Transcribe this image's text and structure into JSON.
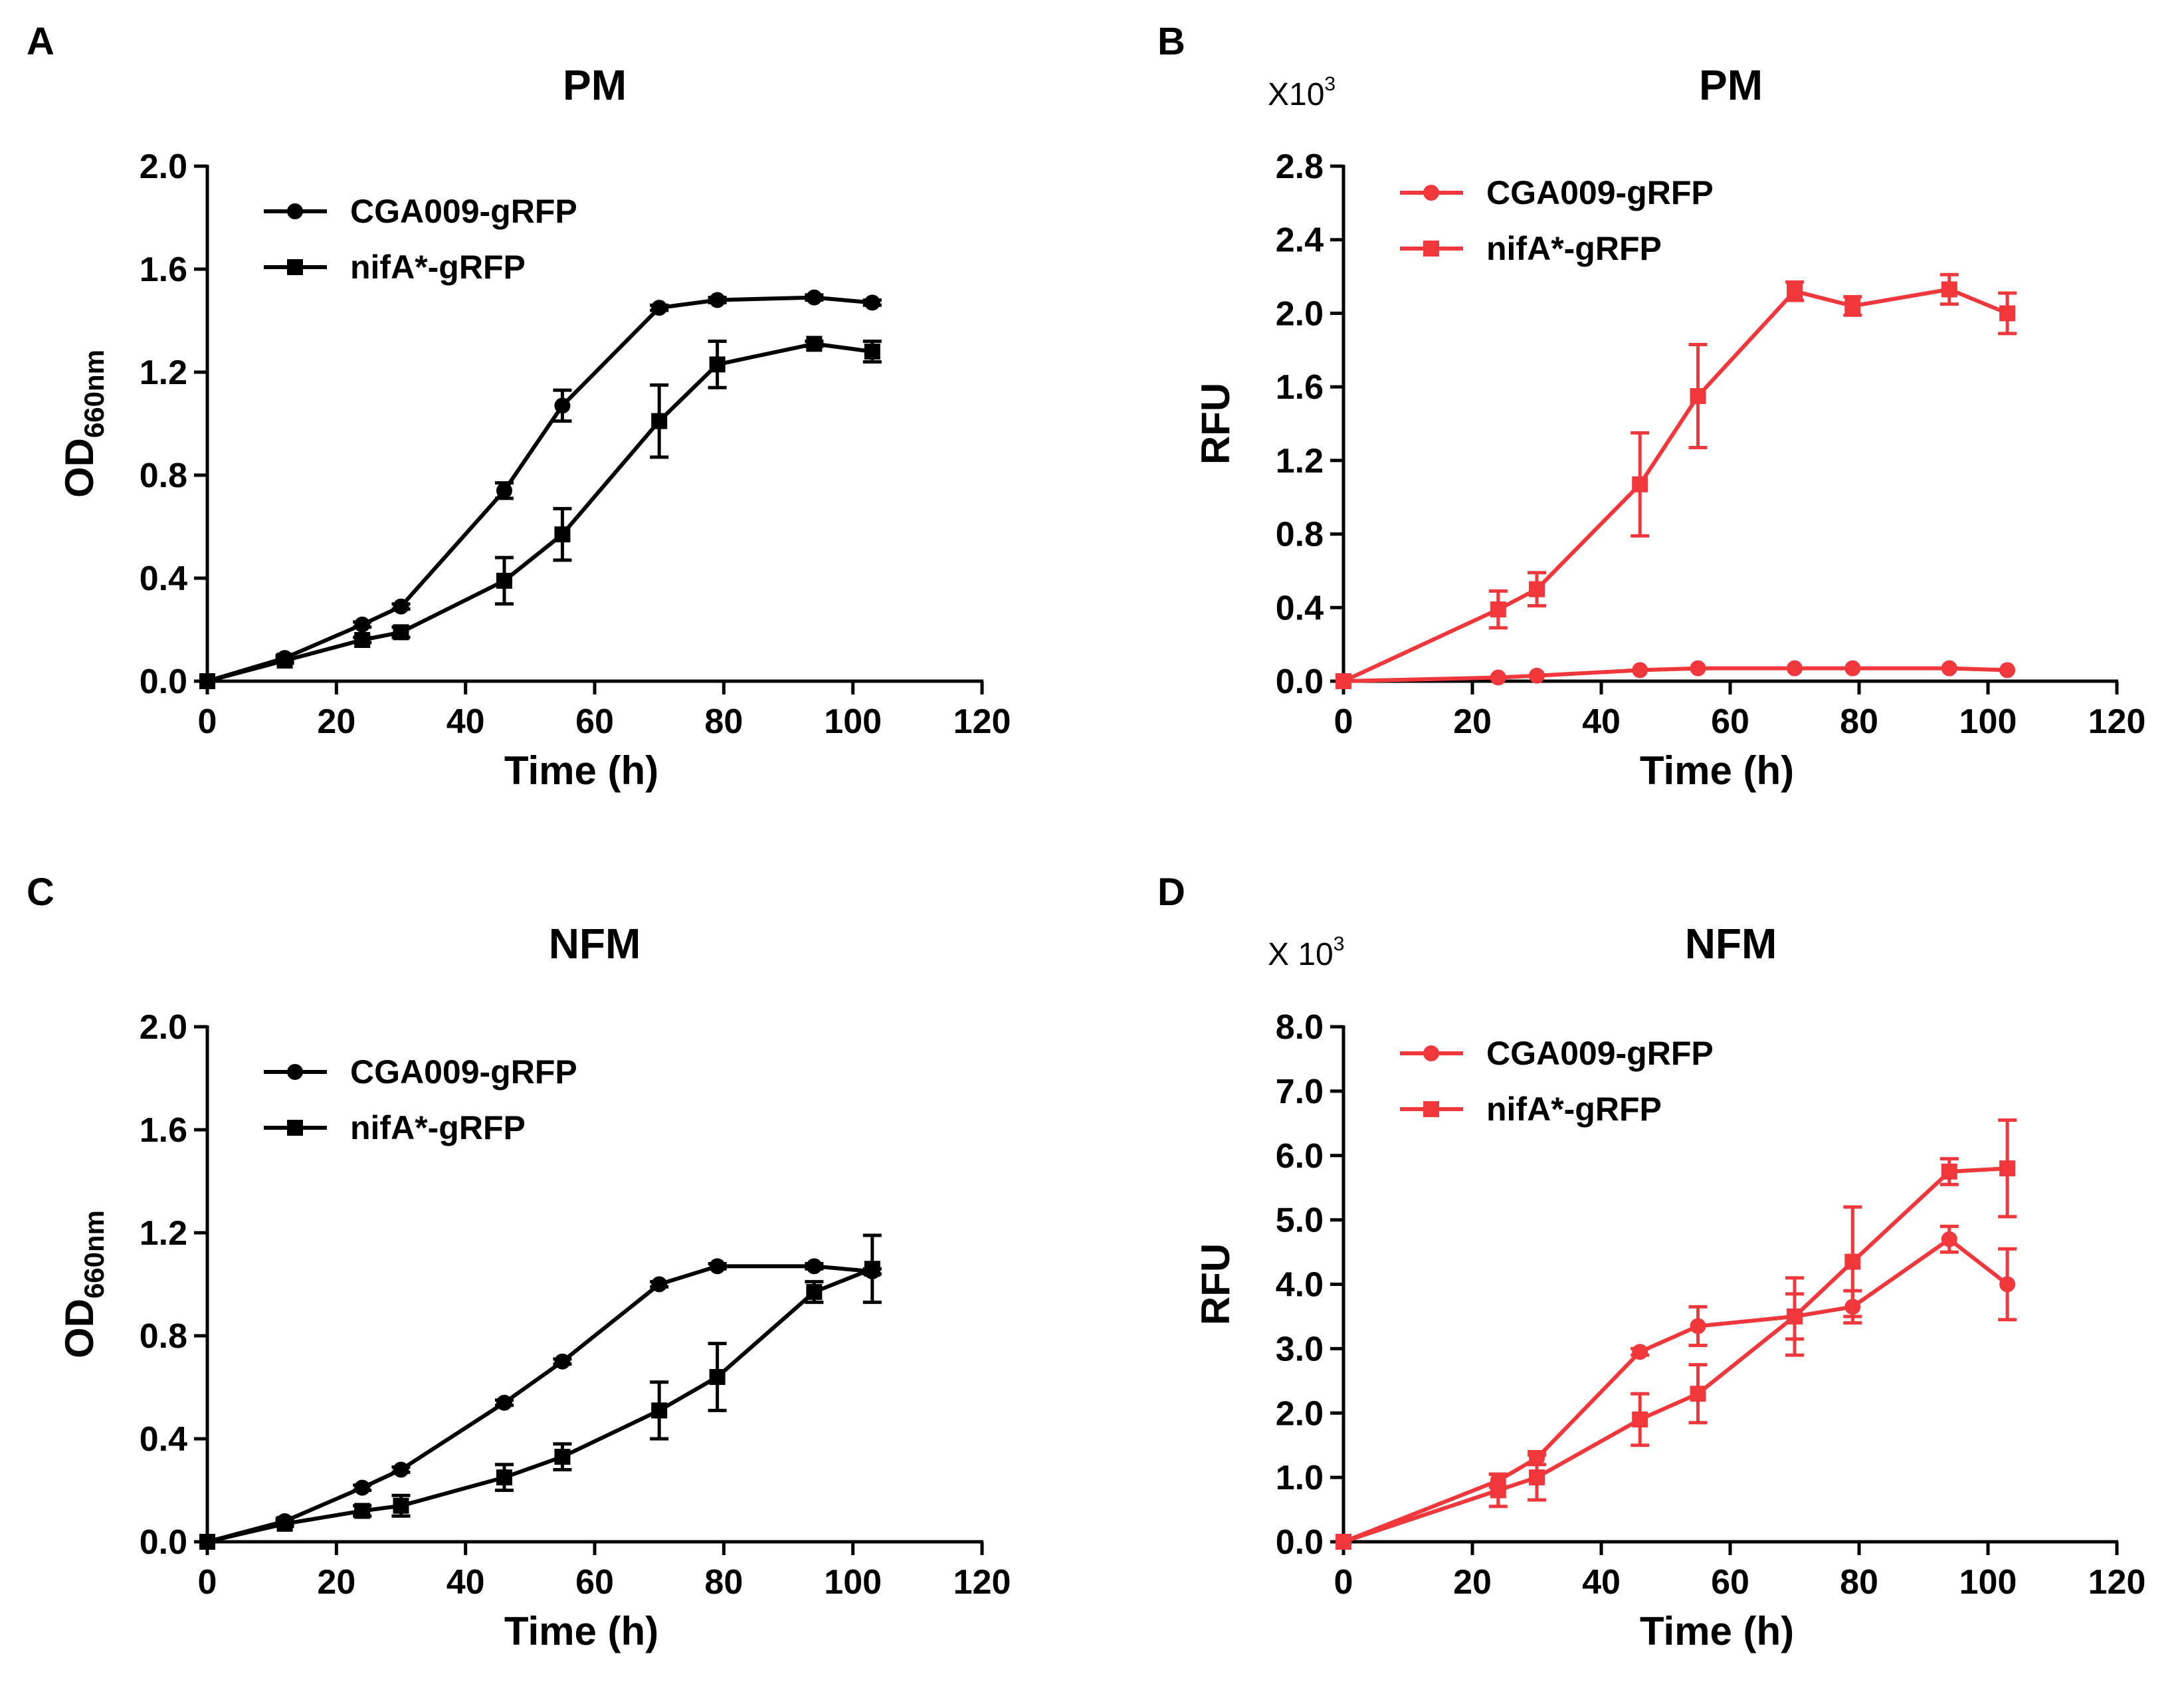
{
  "chart_data": [
    {
      "panel": "A",
      "type": "line",
      "title": "PM",
      "xlabel": "Time (h)",
      "ylabel": "OD",
      "ylabel_sub": "660nm",
      "multiplier": null,
      "xlim": [
        0,
        120
      ],
      "ylim": [
        0,
        2.0
      ],
      "xticks": [
        "0",
        "20",
        "40",
        "60",
        "80",
        "100",
        "120"
      ],
      "yticks": [
        "0.0",
        "0.4",
        "0.8",
        "1.2",
        "1.6",
        "2.0"
      ],
      "color": "#000000",
      "legend_position": "top-left",
      "series": [
        {
          "name": "CGA009-gRFP",
          "marker": "circle",
          "x": [
            0,
            12,
            24,
            30,
            46,
            55,
            70,
            79,
            94,
            103
          ],
          "values": [
            0.0,
            0.09,
            0.22,
            0.29,
            0.74,
            1.07,
            1.45,
            1.48,
            1.49,
            1.47
          ],
          "errors": [
            0,
            0.01,
            0.01,
            0.01,
            0.03,
            0.06,
            0.01,
            0.01,
            0.01,
            0.01
          ]
        },
        {
          "name": "nifA*-gRFP",
          "marker": "square",
          "x": [
            0,
            12,
            24,
            30,
            46,
            55,
            70,
            79,
            94,
            103
          ],
          "values": [
            0.0,
            0.08,
            0.16,
            0.19,
            0.39,
            0.57,
            1.01,
            1.23,
            1.31,
            1.28
          ],
          "errors": [
            0,
            0.01,
            0.01,
            0.02,
            0.09,
            0.1,
            0.14,
            0.09,
            0.01,
            0.04
          ]
        }
      ]
    },
    {
      "panel": "B",
      "type": "line",
      "title": "PM",
      "xlabel": "Time (h)",
      "ylabel": "RFU",
      "ylabel_sub": "",
      "multiplier": "X10",
      "multiplier_exp": "3",
      "xlim": [
        0,
        120
      ],
      "ylim": [
        0,
        2.8
      ],
      "xticks": [
        "0",
        "20",
        "40",
        "60",
        "80",
        "100",
        "120"
      ],
      "yticks": [
        "0.0",
        "0.4",
        "0.8",
        "1.2",
        "1.6",
        "2.0",
        "2.4",
        "2.8"
      ],
      "color": "#f0383c",
      "legend_position": "top-left",
      "series": [
        {
          "name": "CGA009-gRFP",
          "marker": "circle",
          "x": [
            0,
            24,
            30,
            46,
            55,
            70,
            79,
            94,
            103
          ],
          "values": [
            0.0,
            0.02,
            0.03,
            0.06,
            0.07,
            0.07,
            0.07,
            0.07,
            0.06
          ],
          "errors": [
            0,
            0,
            0,
            0,
            0,
            0,
            0,
            0,
            0
          ]
        },
        {
          "name": "nifA*-gRFP",
          "marker": "square",
          "x": [
            0,
            24,
            30,
            46,
            55,
            70,
            79,
            94,
            103
          ],
          "values": [
            0.0,
            0.39,
            0.5,
            1.07,
            1.55,
            2.12,
            2.04,
            2.13,
            2.0
          ],
          "errors": [
            0,
            0.1,
            0.09,
            0.28,
            0.28,
            0.05,
            0.05,
            0.08,
            0.11
          ]
        }
      ]
    },
    {
      "panel": "C",
      "type": "line",
      "title": "NFM",
      "xlabel": "Time (h)",
      "ylabel": "OD",
      "ylabel_sub": "660nm",
      "multiplier": null,
      "xlim": [
        0,
        120
      ],
      "ylim": [
        0,
        2.0
      ],
      "xticks": [
        "0",
        "20",
        "40",
        "60",
        "80",
        "100",
        "120"
      ],
      "yticks": [
        "0.0",
        "0.4",
        "0.8",
        "1.2",
        "1.6",
        "2.0"
      ],
      "color": "#000000",
      "legend_position": "top-left",
      "series": [
        {
          "name": "CGA009-gRFP",
          "marker": "circle",
          "x": [
            0,
            12,
            24,
            30,
            46,
            55,
            70,
            79,
            94,
            103
          ],
          "values": [
            0.0,
            0.08,
            0.21,
            0.28,
            0.54,
            0.7,
            1.0,
            1.07,
            1.07,
            1.05
          ],
          "errors": [
            0,
            0.01,
            0.01,
            0.01,
            0.01,
            0.01,
            0.01,
            0.01,
            0.01,
            0.01
          ]
        },
        {
          "name": "nifA*-gRFP",
          "marker": "square",
          "x": [
            0,
            12,
            24,
            30,
            46,
            55,
            70,
            79,
            94,
            103
          ],
          "values": [
            0.0,
            0.07,
            0.12,
            0.14,
            0.25,
            0.33,
            0.51,
            0.64,
            0.97,
            1.06
          ],
          "errors": [
            0,
            0.01,
            0.02,
            0.04,
            0.05,
            0.05,
            0.11,
            0.13,
            0.04,
            0.13
          ]
        }
      ]
    },
    {
      "panel": "D",
      "type": "line",
      "title": "NFM",
      "xlabel": "Time (h)",
      "ylabel": "RFU",
      "ylabel_sub": "",
      "multiplier": "X 10",
      "multiplier_exp": "3",
      "xlim": [
        0,
        120
      ],
      "ylim": [
        0,
        8.0
      ],
      "xticks": [
        "0",
        "20",
        "40",
        "60",
        "80",
        "100",
        "120"
      ],
      "yticks": [
        "0.0",
        "1.0",
        "2.0",
        "3.0",
        "4.0",
        "5.0",
        "6.0",
        "7.0",
        "8.0"
      ],
      "color": "#f0383c",
      "legend_position": "top-left",
      "series": [
        {
          "name": "CGA009-gRFP",
          "marker": "circle",
          "x": [
            0,
            24,
            30,
            46,
            55,
            70,
            79,
            94,
            103
          ],
          "values": [
            0.0,
            0.95,
            1.3,
            2.95,
            3.35,
            3.5,
            3.65,
            4.7,
            4.0
          ],
          "errors": [
            0,
            0.1,
            0.1,
            0.05,
            0.3,
            0.6,
            0.25,
            0.2,
            0.55
          ]
        },
        {
          "name": "nifA*-gRFP",
          "marker": "square",
          "x": [
            0,
            24,
            30,
            46,
            55,
            70,
            79,
            94,
            103
          ],
          "values": [
            0.0,
            0.8,
            1.0,
            1.9,
            2.3,
            3.5,
            4.35,
            5.75,
            5.8
          ],
          "errors": [
            0,
            0.25,
            0.35,
            0.4,
            0.45,
            0.35,
            0.85,
            0.2,
            0.75
          ]
        }
      ]
    }
  ]
}
